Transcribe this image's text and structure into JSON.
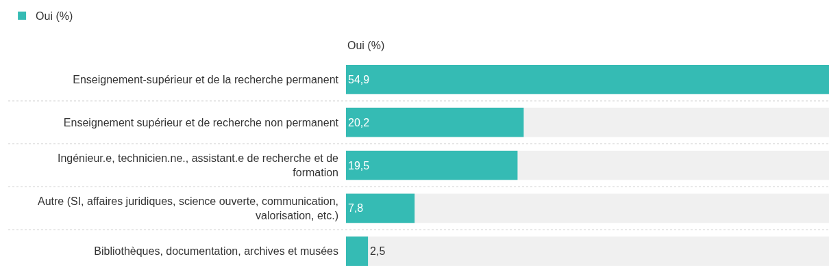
{
  "chart_data": {
    "type": "bar",
    "orientation": "horizontal",
    "categories": [
      "Enseignement-supérieur et de la recherche permanent",
      "Enseignement supérieur et de recherche non permanent",
      "Ingénieur.e, technicien.ne., assistant.e de recherche et de formation",
      "Autre (SI, affaires juridiques, science ouverte, communication, valorisation, etc.)",
      "Bibliothèques, documentation, archives et musées"
    ],
    "series": [
      {
        "name": "Oui (%)",
        "color": "#35bbb4",
        "values": [
          54.9,
          20.2,
          19.5,
          7.8,
          2.5
        ],
        "value_labels": [
          "54,9",
          "20,2",
          "19,5",
          "7,8",
          "2,5"
        ]
      }
    ],
    "xlim": [
      0,
      54.9
    ],
    "legend": "top left"
  }
}
